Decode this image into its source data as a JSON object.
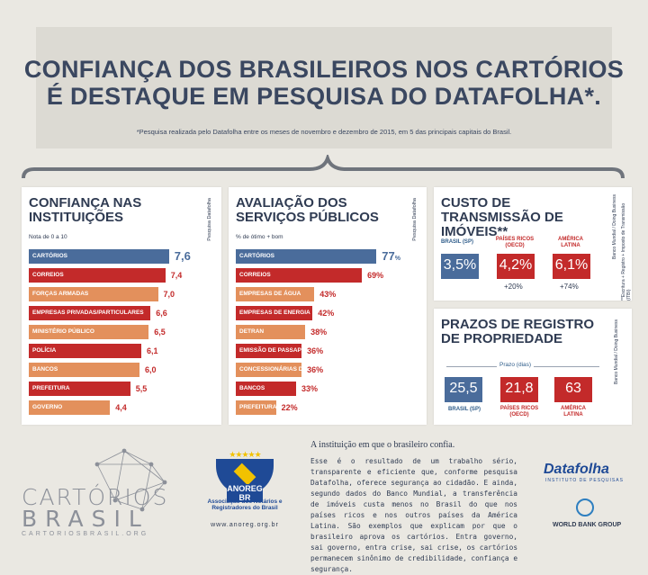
{
  "header": {
    "title_line1": "CONFIANÇA DOS BRASILEIROS NOS CARTÓRIOS",
    "title_line2": "É DESTAQUE EM PESQUISA DO DATAFOLHA*.",
    "footnote": "*Pesquisa realizada pelo Datafolha entre os meses de novembro e dezembro de 2015, em 5 das principais capitais do Brasil."
  },
  "confianca": {
    "title": "CONFIANÇA NAS INSTITUIÇÕES",
    "subtitle": "Nota de 0 a 10",
    "source": "Pesquisa Datafolha",
    "items": [
      {
        "label": "CARTÓRIOS",
        "value": "7,6",
        "num": 7.6,
        "color": "#4a6c9b"
      },
      {
        "label": "CORREIOS",
        "value": "7,4",
        "num": 7.4,
        "color": "#c32a2a"
      },
      {
        "label": "FORÇAS ARMADAS",
        "value": "7,0",
        "num": 7.0,
        "color": "#e3905c"
      },
      {
        "label": "EMPRESAS PRIVADAS/PARTICULARES",
        "value": "6,6",
        "num": 6.6,
        "color": "#c32a2a"
      },
      {
        "label": "MINISTÉRIO PÚBLICO",
        "value": "6,5",
        "num": 6.5,
        "color": "#e3905c"
      },
      {
        "label": "POLÍCIA",
        "value": "6,1",
        "num": 6.1,
        "color": "#c32a2a"
      },
      {
        "label": "BANCOS",
        "value": "6,0",
        "num": 6.0,
        "color": "#e3905c"
      },
      {
        "label": "PREFEITURA",
        "value": "5,5",
        "num": 5.5,
        "color": "#c32a2a"
      },
      {
        "label": "GOVERNO",
        "value": "4,4",
        "num": 4.4,
        "color": "#e3905c"
      }
    ]
  },
  "avaliacao": {
    "title": "AVALIAÇÃO DOS SERVIÇOS PÚBLICOS",
    "subtitle": "% de ótimo + bom",
    "source": "Pesquisa Datafolha",
    "items": [
      {
        "label": "CARTÓRIOS",
        "value": "77",
        "unit": "%",
        "num": 77,
        "color": "#4a6c9b"
      },
      {
        "label": "CORREIOS",
        "value": "69%",
        "num": 69,
        "color": "#c32a2a"
      },
      {
        "label": "EMPRESAS DE ÁGUA",
        "value": "43%",
        "num": 43,
        "color": "#e3905c"
      },
      {
        "label": "EMPRESAS DE ENERGIA",
        "value": "42%",
        "num": 42,
        "color": "#c32a2a"
      },
      {
        "label": "DETRAN",
        "value": "38%",
        "num": 38,
        "color": "#e3905c"
      },
      {
        "label": "EMISSÃO DE PASSAPORTE",
        "value": "36%",
        "num": 36,
        "color": "#c32a2a"
      },
      {
        "label": "CONCESSIONÁRIAS DE ESTRADA",
        "value": "36%",
        "num": 36,
        "color": "#e3905c"
      },
      {
        "label": "BANCOS",
        "value": "33%",
        "num": 33,
        "color": "#c32a2a"
      },
      {
        "label": "PREFEITURA",
        "value": "22%",
        "num": 22,
        "color": "#e3905c"
      }
    ]
  },
  "custo": {
    "title": "CUSTO DE TRANSMISSÃO DE IMÓVEIS**",
    "source": "Banco Mundial / Doing Business",
    "note": "**Escritura + Registro + Imposto de Transmissão (ITBI)",
    "brasil_label": "BRASIL (SP)",
    "brasil_value": "3,5%",
    "ricos_label": "PAÍSES RICOS (OECD)",
    "ricos_value": "4,2%",
    "ricos_diff": "+20%",
    "latina_label": "AMÉRICA LATINA",
    "latina_value": "6,1%",
    "latina_diff": "+74%"
  },
  "prazos": {
    "title": "PRAZOS DE REGISTRO DE PROPRIEDADE",
    "source": "Banco Mundial / Doing Business",
    "unit": "Prazo (dias)",
    "brasil_label": "BRASIL (SP)",
    "brasil_value": "25,5",
    "ricos_label": "PAÍSES RICOS (OECD)",
    "ricos_value": "21,8",
    "latina_label": "AMÉRICA LATINA",
    "latina_value": "63"
  },
  "logos": {
    "cartorios_line1": "CARTÓRIOS",
    "cartorios_line2": "BRASIL",
    "cartorios_url": "CARTORIOSBRASIL.ORG",
    "anoreg_name": "ANOREG BR",
    "anoreg_text": "Associação dos Notários e Registradores do Brasil",
    "anoreg_url": "www.anoreg.org.br",
    "datafolha": "Datafolha",
    "datafolha_sub": "INSTITUTO DE PESQUISAS",
    "worldbank": "WORLD BANK GROUP"
  },
  "text": {
    "heading": "A instituição em que o brasileiro confia.",
    "body": "Esse é o resultado de um trabalho sério, transparente e eficiente que, conforme pesquisa Datafolha, oferece segurança ao cidadão. E ainda, segundo dados do Banco Mundial, a transferência de imóveis custa menos no Brasil do que nos países ricos e nos outros países da América Latina. São exemplos que explicam por que o brasileiro aprova os cartórios. Entra governo, sai governo, entra crise, sai crise, os cartórios permanecem sinônimo de credibilidade, confiança e segurança."
  }
}
